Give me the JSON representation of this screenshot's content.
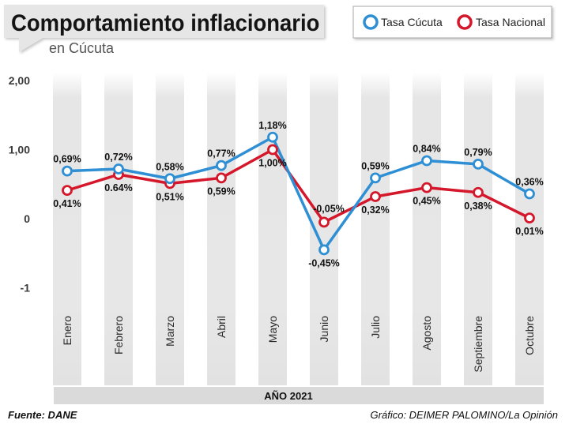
{
  "chart_data": {
    "type": "line",
    "title": "Comportamiento inflacionario",
    "subtitle": "en Cúcuta",
    "categories": [
      "Enero",
      "Febrero",
      "Marzo",
      "Abril",
      "Mayo",
      "Junio",
      "Julio",
      "Agosto",
      "Septiembre",
      "Octubre"
    ],
    "series": [
      {
        "name": "Tasa Cúcuta",
        "color": "#2e8fd4",
        "values": [
          0.69,
          0.72,
          0.58,
          0.77,
          1.18,
          -0.45,
          0.59,
          0.84,
          0.79,
          0.36
        ],
        "labels": [
          "0,69%",
          "0,72%",
          "0,58%",
          "0,77%",
          "1,18%",
          "-0,45%",
          "0,59%",
          "0,84%",
          "0,79%",
          "0,36%"
        ]
      },
      {
        "name": "Tasa Nacional",
        "color": "#d5172b",
        "values": [
          0.41,
          0.64,
          0.51,
          0.59,
          1.0,
          -0.05,
          0.32,
          0.45,
          0.38,
          0.01
        ],
        "labels": [
          "0,41%",
          "0.64%",
          "0,51%",
          "0,59%",
          "1,00%",
          "-0,05%",
          "0,32%",
          "0,45%",
          "0,38%",
          "0,01%"
        ]
      }
    ],
    "xlabel": "AÑO 2021",
    "ylim": [
      -1,
      2
    ],
    "yticks": [
      {
        "value": 2,
        "label": "2,00"
      },
      {
        "value": 1,
        "label": "1,00"
      },
      {
        "value": 0,
        "label": "0"
      },
      {
        "value": -1,
        "label": "-1"
      }
    ],
    "legend": "top-right"
  },
  "footer": {
    "source": "Fuente: DANE",
    "credit": "Gráfico: DEIMER PALOMINO/La Opinión"
  }
}
